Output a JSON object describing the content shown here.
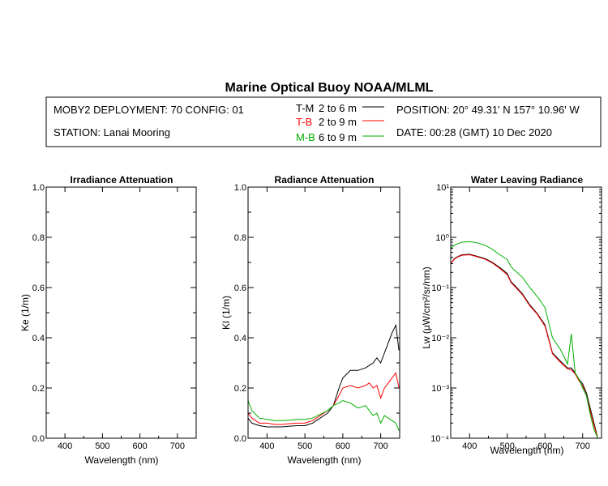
{
  "header": {
    "title": "Marine Optical Buoy NOAA/MLML",
    "deployment": "MOBY2 DEPLOYMENT: 70 CONFIG: 01",
    "station": "STATION: Lanai Mooring",
    "position": "POSITION: 20° 49.31' N   157° 10.96' W",
    "date": "DATE: 00:28 (GMT) 10 Dec 2020",
    "legend": [
      {
        "code": "T-M",
        "range": "2 to 6  m",
        "color": "#000000"
      },
      {
        "code": "T-B",
        "range": "2 to 9  m",
        "color": "#ff0000"
      },
      {
        "code": "M-B",
        "range": "6 to 9  m",
        "color": "#00b000"
      }
    ]
  },
  "chart_data": [
    {
      "type": "line",
      "title": "Irradiance Attenuation",
      "xlabel": "Wavelength (nm)",
      "ylabel": "Ke  (1/m)",
      "xlim": [
        350,
        750
      ],
      "ylim": [
        0,
        1
      ],
      "xticks": [
        "400",
        "500",
        "600",
        "700"
      ],
      "yticks": [
        "0.0",
        "0.2",
        "0.4",
        "0.6",
        "0.8",
        "1.0"
      ],
      "series": []
    },
    {
      "type": "line",
      "title": "Radiance Attenuation",
      "xlabel": "Wavelength (nm)",
      "ylabel": "Kl  (1/m)",
      "xlim": [
        350,
        750
      ],
      "ylim": [
        0,
        1
      ],
      "xticks": [
        "400",
        "500",
        "600",
        "700"
      ],
      "yticks": [
        "0.0",
        "0.2",
        "0.4",
        "0.6",
        "0.8",
        "1.0"
      ],
      "series": [
        {
          "name": "T-M",
          "color": "#000000",
          "x": [
            350,
            360,
            380,
            400,
            420,
            440,
            460,
            480,
            500,
            520,
            540,
            560,
            575,
            590,
            600,
            620,
            640,
            660,
            670,
            680,
            690,
            700,
            710,
            720,
            730,
            740,
            748
          ],
          "y": [
            0.08,
            0.06,
            0.05,
            0.045,
            0.045,
            0.045,
            0.048,
            0.05,
            0.05,
            0.06,
            0.08,
            0.1,
            0.13,
            0.2,
            0.24,
            0.27,
            0.27,
            0.28,
            0.29,
            0.3,
            0.32,
            0.3,
            0.34,
            0.38,
            0.42,
            0.45,
            0.35
          ]
        },
        {
          "name": "T-B",
          "color": "#ff0000",
          "x": [
            350,
            360,
            380,
            400,
            420,
            440,
            460,
            480,
            500,
            520,
            540,
            560,
            575,
            590,
            600,
            620,
            640,
            660,
            670,
            680,
            690,
            700,
            710,
            720,
            730,
            740,
            748
          ],
          "y": [
            0.1,
            0.08,
            0.06,
            0.06,
            0.055,
            0.055,
            0.058,
            0.06,
            0.06,
            0.07,
            0.09,
            0.11,
            0.13,
            0.17,
            0.2,
            0.21,
            0.2,
            0.21,
            0.22,
            0.2,
            0.21,
            0.16,
            0.2,
            0.22,
            0.24,
            0.26,
            0.2
          ]
        },
        {
          "name": "M-B",
          "color": "#00b000",
          "x": [
            350,
            360,
            380,
            400,
            420,
            440,
            460,
            480,
            500,
            520,
            540,
            560,
            575,
            590,
            600,
            620,
            640,
            660,
            670,
            680,
            690,
            700,
            710,
            720,
            730,
            740,
            748
          ],
          "y": [
            0.15,
            0.11,
            0.08,
            0.075,
            0.07,
            0.07,
            0.072,
            0.075,
            0.075,
            0.08,
            0.095,
            0.11,
            0.13,
            0.14,
            0.15,
            0.14,
            0.12,
            0.13,
            0.11,
            0.09,
            0.1,
            0.06,
            0.09,
            0.08,
            0.07,
            0.06,
            0.03
          ]
        }
      ]
    },
    {
      "type": "line",
      "title": "Water Leaving Radiance",
      "xlabel": "Wavelength (nm)",
      "ylabel": "Lw  (μW/cm²/sr/nm)",
      "xlim": [
        350,
        750
      ],
      "ylim": [
        0.0001,
        10
      ],
      "yscale": "log",
      "xticks": [
        "400",
        "500",
        "600",
        "700"
      ],
      "yticks": [
        "10⁻⁴",
        "10⁻³",
        "10⁻²",
        "10⁻¹",
        "10⁰",
        "10¹"
      ],
      "series": [
        {
          "name": "T-M",
          "color": "#000000",
          "x": [
            350,
            360,
            370,
            380,
            400,
            420,
            440,
            460,
            480,
            500,
            510,
            520,
            540,
            560,
            580,
            600,
            620,
            640,
            660,
            670,
            680,
            690,
            700,
            710,
            720,
            730,
            740
          ],
          "y": [
            0.3,
            0.38,
            0.42,
            0.45,
            0.46,
            0.42,
            0.38,
            0.32,
            0.25,
            0.19,
            0.13,
            0.11,
            0.075,
            0.045,
            0.03,
            0.018,
            0.005,
            0.0035,
            0.0025,
            0.0025,
            0.002,
            0.0015,
            0.0012,
            0.0008,
            0.0004,
            0.0002,
            0.0001
          ]
        },
        {
          "name": "T-B",
          "color": "#ff0000",
          "x": [
            350,
            360,
            370,
            380,
            400,
            420,
            440,
            460,
            480,
            500,
            510,
            520,
            540,
            560,
            580,
            600,
            620,
            640,
            660,
            670,
            680,
            690,
            700,
            710,
            720,
            730,
            740
          ],
          "y": [
            0.3,
            0.37,
            0.41,
            0.44,
            0.45,
            0.41,
            0.37,
            0.31,
            0.24,
            0.18,
            0.125,
            0.105,
            0.072,
            0.043,
            0.029,
            0.017,
            0.0048,
            0.0033,
            0.0024,
            0.0023,
            0.0019,
            0.0014,
            0.0011,
            0.0007,
            0.00035,
            0.00018,
            0.0001
          ]
        },
        {
          "name": "M-B",
          "color": "#00b000",
          "x": [
            350,
            360,
            370,
            380,
            400,
            420,
            440,
            460,
            480,
            500,
            510,
            520,
            540,
            560,
            580,
            600,
            620,
            640,
            660,
            670,
            680,
            690,
            700,
            710,
            720,
            730,
            740
          ],
          "y": [
            0.6,
            0.7,
            0.75,
            0.8,
            0.82,
            0.78,
            0.7,
            0.58,
            0.45,
            0.36,
            0.26,
            0.22,
            0.16,
            0.1,
            0.065,
            0.04,
            0.01,
            0.006,
            0.003,
            0.012,
            0.002,
            0.0015,
            0.001,
            0.0007,
            0.0003,
            0.00015,
            0.0001
          ]
        }
      ]
    }
  ]
}
